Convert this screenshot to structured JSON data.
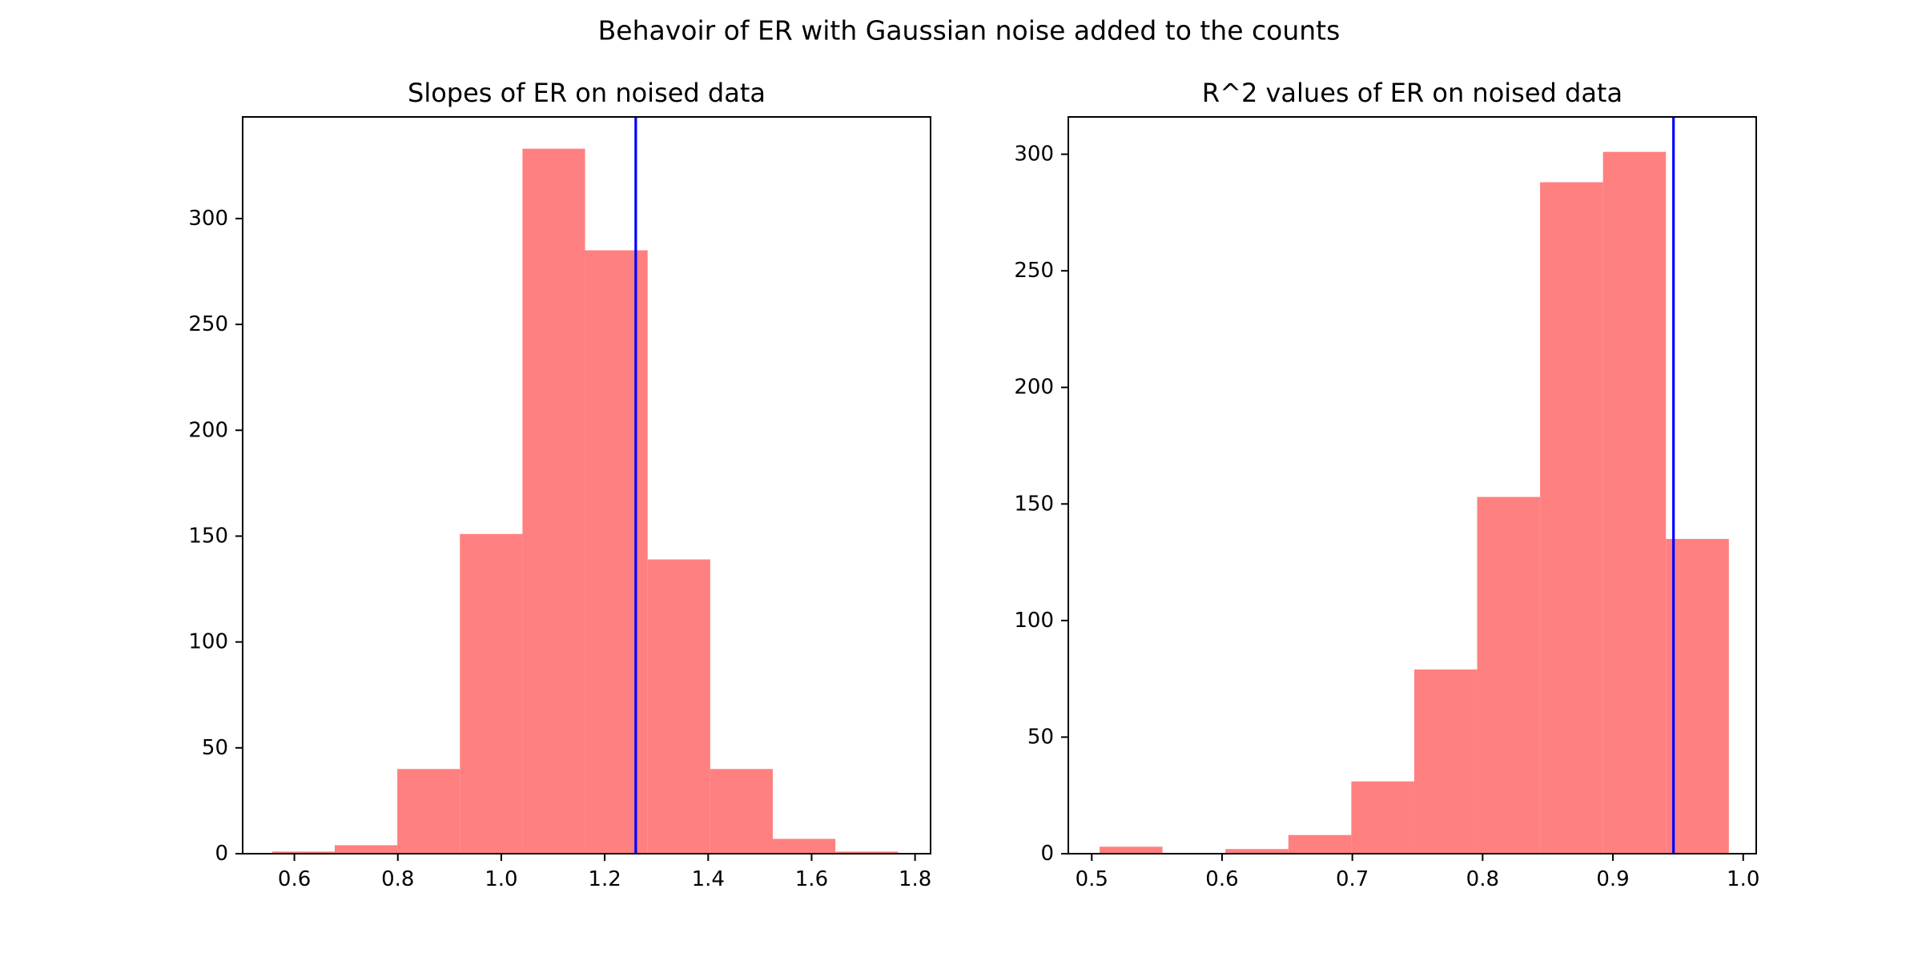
{
  "figure": {
    "suptitle": "Behavoir of ER with Gaussian noise added to the counts"
  },
  "colors": {
    "bar": "#ff8080",
    "reference_line": "#0000ff",
    "axes": "#000000"
  },
  "chart_data": [
    {
      "type": "bar",
      "subtype": "histogram",
      "title": "Slopes of ER on noised data",
      "xlabel": "",
      "ylabel": "",
      "xlim": [
        0.5,
        1.83
      ],
      "ylim": [
        0,
        348
      ],
      "xticks": [
        0.6,
        0.8,
        1.0,
        1.2,
        1.4,
        1.6,
        1.8
      ],
      "xtick_labels": [
        "0.6",
        "0.8",
        "1.0",
        "1.2",
        "1.4",
        "1.6",
        "1.8"
      ],
      "yticks": [
        0,
        50,
        100,
        150,
        200,
        250,
        300
      ],
      "ytick_labels": [
        "0",
        "50",
        "100",
        "150",
        "200",
        "250",
        "300"
      ],
      "bin_edges": [
        0.557,
        0.678,
        0.799,
        0.92,
        1.041,
        1.162,
        1.283,
        1.404,
        1.525,
        1.646,
        1.767
      ],
      "counts": [
        1,
        4,
        40,
        151,
        333,
        285,
        139,
        40,
        7,
        1
      ],
      "reference_line_x": 1.26,
      "grid": false,
      "legend": "none"
    },
    {
      "type": "bar",
      "subtype": "histogram",
      "title": "R^2 values of ER on noised data",
      "xlabel": "",
      "ylabel": "",
      "xlim": [
        0.482,
        1.01
      ],
      "ylim": [
        0,
        316
      ],
      "xticks": [
        0.5,
        0.6,
        0.7,
        0.8,
        0.9,
        1.0
      ],
      "xtick_labels": [
        "0.5",
        "0.6",
        "0.7",
        "0.8",
        "0.9",
        "1.0"
      ],
      "yticks": [
        0,
        50,
        100,
        150,
        200,
        250,
        300
      ],
      "ytick_labels": [
        "0",
        "50",
        "100",
        "150",
        "200",
        "250",
        "300"
      ],
      "bin_edges": [
        0.506,
        0.5543,
        0.6026,
        0.6509,
        0.6992,
        0.7475,
        0.7958,
        0.8441,
        0.8924,
        0.9407,
        0.989
      ],
      "counts": [
        3,
        0,
        2,
        8,
        31,
        79,
        153,
        288,
        301,
        135
      ],
      "reference_line_x": 0.9465,
      "grid": false,
      "legend": "none"
    }
  ]
}
